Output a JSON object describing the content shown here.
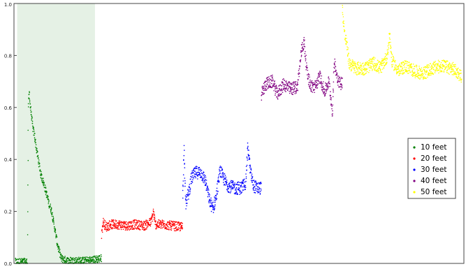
{
  "chart_data": {
    "type": "scatter",
    "title": "",
    "xlabel": "",
    "ylabel": "",
    "xlim": [
      0,
      1000
    ],
    "ylim": [
      0,
      1.0
    ],
    "yticks": [
      "0.0",
      "0.2",
      "0.4",
      "0.6",
      "0.8",
      "1.0"
    ],
    "grid": false,
    "legend_position": "right",
    "highlight_region": {
      "x_start": 7,
      "x_end": 180,
      "color": "#e5f1e5"
    },
    "series": [
      {
        "name": "10 feet",
        "color": "#008000",
        "x_range": [
          0,
          195
        ],
        "points": [
          [
            3,
            0.005
          ],
          [
            15,
            0.005
          ],
          [
            25,
            0.005
          ],
          [
            30,
            0.005
          ],
          [
            32,
            0.6
          ],
          [
            34,
            0.66
          ],
          [
            36,
            0.61
          ],
          [
            38,
            0.58
          ],
          [
            42,
            0.52
          ],
          [
            46,
            0.49
          ],
          [
            50,
            0.44
          ],
          [
            55,
            0.39
          ],
          [
            60,
            0.34
          ],
          [
            66,
            0.31
          ],
          [
            72,
            0.27
          ],
          [
            78,
            0.23
          ],
          [
            84,
            0.2
          ],
          [
            88,
            0.16
          ],
          [
            92,
            0.12
          ],
          [
            96,
            0.08
          ],
          [
            100,
            0.05
          ],
          [
            105,
            0.02
          ],
          [
            110,
            0.015
          ],
          [
            120,
            0.01
          ],
          [
            140,
            0.01
          ],
          [
            160,
            0.01
          ],
          [
            180,
            0.015
          ],
          [
            195,
            0.02
          ]
        ]
      },
      {
        "name": "20 feet",
        "color": "#ff0000",
        "x_range": [
          195,
          375
        ],
        "points": [
          [
            195,
            0.11
          ],
          [
            198,
            0.16
          ],
          [
            205,
            0.14
          ],
          [
            215,
            0.15
          ],
          [
            230,
            0.15
          ],
          [
            250,
            0.145
          ],
          [
            270,
            0.15
          ],
          [
            290,
            0.145
          ],
          [
            305,
            0.16
          ],
          [
            310,
            0.2
          ],
          [
            314,
            0.15
          ],
          [
            330,
            0.15
          ],
          [
            350,
            0.145
          ],
          [
            375,
            0.14
          ]
        ]
      },
      {
        "name": "30 feet",
        "color": "#0000ff",
        "x_range": [
          375,
          550
        ],
        "points": [
          [
            375,
            0.26
          ],
          [
            378,
            0.44
          ],
          [
            382,
            0.23
          ],
          [
            388,
            0.27
          ],
          [
            395,
            0.33
          ],
          [
            405,
            0.35
          ],
          [
            415,
            0.35
          ],
          [
            425,
            0.32
          ],
          [
            435,
            0.24
          ],
          [
            442,
            0.21
          ],
          [
            450,
            0.26
          ],
          [
            458,
            0.36
          ],
          [
            465,
            0.33
          ],
          [
            475,
            0.3
          ],
          [
            490,
            0.29
          ],
          [
            505,
            0.29
          ],
          [
            515,
            0.31
          ],
          [
            520,
            0.45
          ],
          [
            525,
            0.36
          ],
          [
            532,
            0.3
          ],
          [
            540,
            0.29
          ],
          [
            550,
            0.29
          ]
        ]
      },
      {
        "name": "40 feet",
        "color": "#800080",
        "x_range": [
          550,
          730
        ],
        "points": [
          [
            550,
            0.65
          ],
          [
            560,
            0.69
          ],
          [
            575,
            0.7
          ],
          [
            585,
            0.65
          ],
          [
            600,
            0.69
          ],
          [
            615,
            0.67
          ],
          [
            630,
            0.68
          ],
          [
            640,
            0.83
          ],
          [
            645,
            0.85
          ],
          [
            652,
            0.73
          ],
          [
            660,
            0.68
          ],
          [
            670,
            0.68
          ],
          [
            680,
            0.72
          ],
          [
            690,
            0.66
          ],
          [
            700,
            0.7
          ],
          [
            708,
            0.58
          ],
          [
            712,
            0.78
          ],
          [
            718,
            0.72
          ],
          [
            725,
            0.69
          ],
          [
            730,
            0.7
          ]
        ]
      },
      {
        "name": "50 feet",
        "color": "#ffff00",
        "x_range": [
          730,
          1000
        ],
        "points": [
          [
            730,
            0.98
          ],
          [
            735,
            0.88
          ],
          [
            740,
            0.84
          ],
          [
            745,
            0.77
          ],
          [
            760,
            0.75
          ],
          [
            780,
            0.75
          ],
          [
            800,
            0.77
          ],
          [
            815,
            0.75
          ],
          [
            830,
            0.8
          ],
          [
            835,
            0.88
          ],
          [
            840,
            0.78
          ],
          [
            855,
            0.74
          ],
          [
            870,
            0.76
          ],
          [
            890,
            0.74
          ],
          [
            910,
            0.73
          ],
          [
            930,
            0.75
          ],
          [
            950,
            0.76
          ],
          [
            975,
            0.75
          ],
          [
            995,
            0.72
          ]
        ]
      }
    ]
  }
}
